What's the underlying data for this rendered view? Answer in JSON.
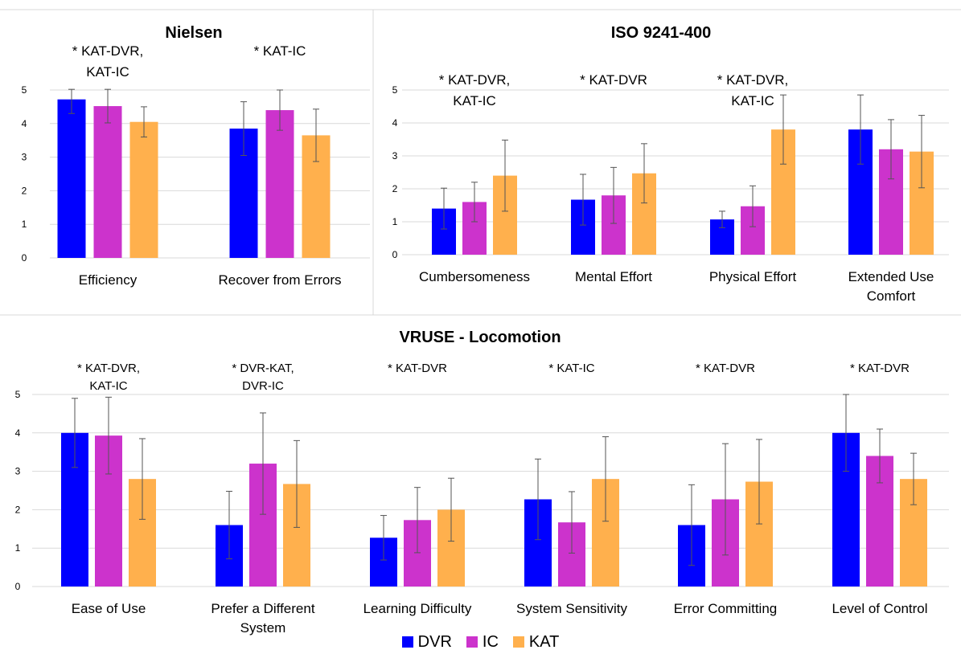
{
  "colors": {
    "DVR": "#0000FF",
    "IC": "#CC33CC",
    "KAT": "#FFB04D",
    "grid": "#D9D9D9",
    "error": "#555555"
  },
  "legend": [
    {
      "key": "DVR",
      "label": "DVR"
    },
    {
      "key": "IC",
      "label": "IC"
    },
    {
      "key": "KAT",
      "label": "KAT"
    }
  ],
  "chart_data": [
    {
      "type": "bar",
      "title": "Nielsen",
      "ylim": [
        0,
        5
      ],
      "yticks": [
        0,
        1,
        2,
        3,
        4,
        5
      ],
      "categories": [
        {
          "label": [
            "Efficiency"
          ],
          "annotation": [
            "* KAT-DVR,",
            "KAT-IC"
          ]
        },
        {
          "label": [
            "Recover from Errors"
          ],
          "annotation": [
            "* KAT-IC"
          ]
        }
      ],
      "series": [
        {
          "name": "DVR",
          "values": [
            4.72,
            3.85
          ],
          "errors": [
            0.42,
            0.8
          ]
        },
        {
          "name": "IC",
          "values": [
            4.52,
            4.4
          ],
          "errors": [
            0.5,
            0.6
          ]
        },
        {
          "name": "KAT",
          "values": [
            4.05,
            3.65
          ],
          "errors": [
            0.45,
            0.78
          ]
        }
      ]
    },
    {
      "type": "bar",
      "title": "ISO  9241-400",
      "ylim": [
        0,
        5
      ],
      "yticks": [
        0,
        1,
        2,
        3,
        4,
        5
      ],
      "categories": [
        {
          "label": [
            "Cumbersomeness"
          ],
          "annotation": [
            "* KAT-DVR,",
            "KAT-IC"
          ]
        },
        {
          "label": [
            "Mental Effort"
          ],
          "annotation": [
            "* KAT-DVR"
          ]
        },
        {
          "label": [
            "Physical Effort"
          ],
          "annotation": [
            "* KAT-DVR,",
            "KAT-IC"
          ]
        },
        {
          "label": [
            "Extended Use",
            "Comfort"
          ],
          "annotation": []
        }
      ],
      "series": [
        {
          "name": "DVR",
          "values": [
            1.4,
            1.67,
            1.07,
            3.8
          ],
          "errors": [
            0.62,
            0.77,
            0.25,
            1.05
          ]
        },
        {
          "name": "IC",
          "values": [
            1.6,
            1.8,
            1.47,
            3.2
          ],
          "errors": [
            0.6,
            0.85,
            0.62,
            0.9
          ]
        },
        {
          "name": "KAT",
          "values": [
            2.4,
            2.47,
            3.8,
            3.13
          ],
          "errors": [
            1.08,
            0.9,
            1.05,
            1.1
          ]
        }
      ]
    },
    {
      "type": "bar",
      "title": "VRUSE - Locomotion",
      "ylim": [
        0,
        5
      ],
      "yticks": [
        0,
        1,
        2,
        3,
        4,
        5
      ],
      "categories": [
        {
          "label": [
            "Ease of Use"
          ],
          "annotation": [
            "* KAT-DVR,",
            "KAT-IC"
          ]
        },
        {
          "label": [
            "Prefer a Different",
            "System"
          ],
          "annotation": [
            "* DVR-KAT,",
            "DVR-IC"
          ]
        },
        {
          "label": [
            "Learning Difficulty"
          ],
          "annotation": [
            "* KAT-DVR"
          ]
        },
        {
          "label": [
            "System Sensitivity"
          ],
          "annotation": [
            "* KAT-IC"
          ]
        },
        {
          "label": [
            "Error Committing"
          ],
          "annotation": [
            "* KAT-DVR"
          ]
        },
        {
          "label": [
            "Level of Control"
          ],
          "annotation": [
            "* KAT-DVR"
          ]
        }
      ],
      "series": [
        {
          "name": "DVR",
          "values": [
            4.0,
            1.6,
            1.27,
            2.27,
            1.6,
            4.0
          ],
          "errors": [
            0.9,
            0.88,
            0.58,
            1.05,
            1.05,
            1.0
          ]
        },
        {
          "name": "IC",
          "values": [
            3.93,
            3.2,
            1.73,
            1.67,
            2.27,
            3.4
          ],
          "errors": [
            1.0,
            1.32,
            0.85,
            0.8,
            1.45,
            0.7
          ]
        },
        {
          "name": "KAT",
          "values": [
            2.8,
            2.67,
            2.0,
            2.8,
            2.73,
            2.8
          ],
          "errors": [
            1.05,
            1.13,
            0.82,
            1.1,
            1.1,
            0.67
          ]
        }
      ]
    }
  ]
}
